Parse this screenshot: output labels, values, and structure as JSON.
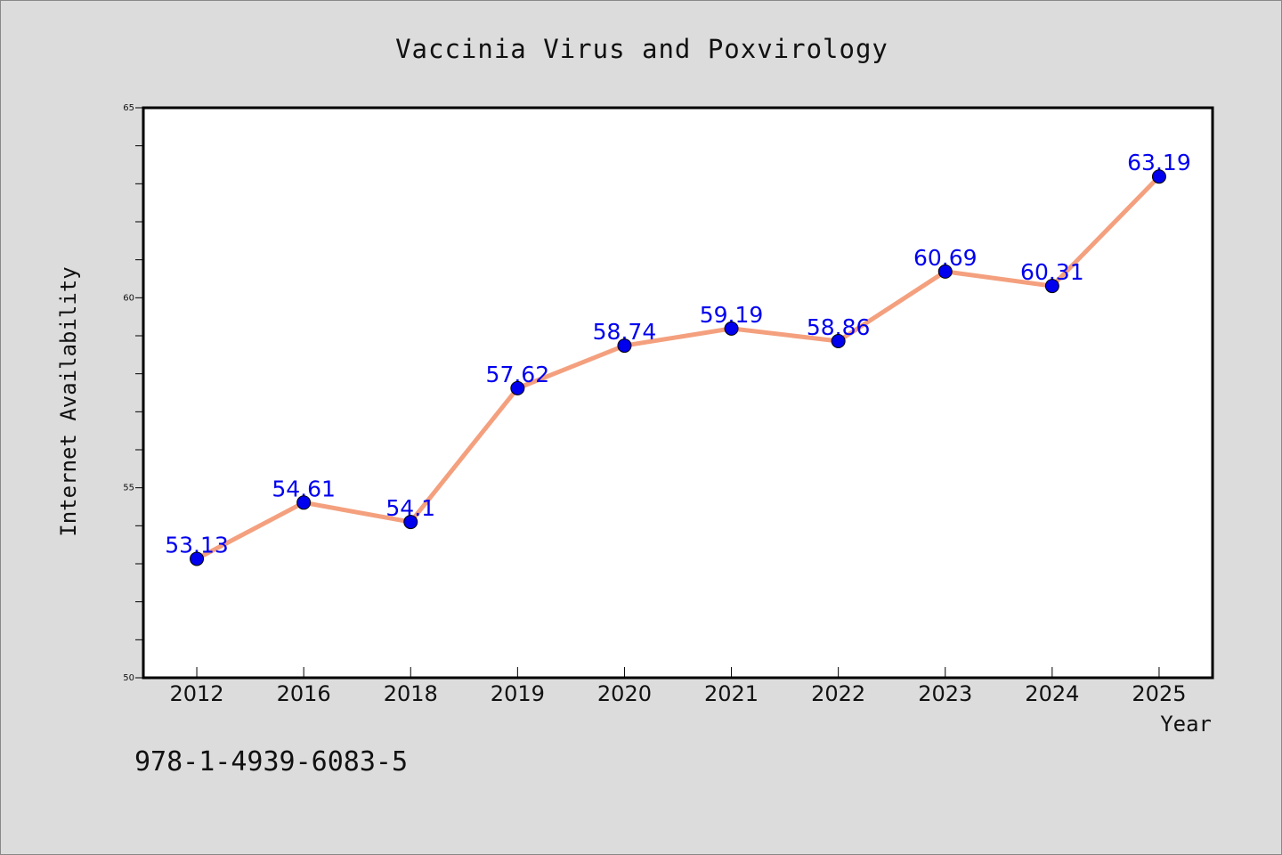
{
  "chart_data": {
    "type": "line",
    "title": "Vaccinia Virus and Poxvirology",
    "xlabel": "Year",
    "ylabel": "Internet Availability",
    "categories": [
      "2012",
      "2016",
      "2018",
      "2019",
      "2020",
      "2021",
      "2022",
      "2023",
      "2024",
      "2025"
    ],
    "values": [
      53.13,
      54.61,
      54.1,
      57.62,
      58.74,
      59.19,
      58.86,
      60.69,
      60.31,
      63.19
    ],
    "data_labels": [
      "53.13",
      "54.61",
      "54.1",
      "57.62",
      "58.74",
      "59.19",
      "58.86",
      "60.69",
      "60.31",
      "63.19"
    ],
    "ylim": [
      50,
      65
    ],
    "y_major_ticks": [
      50,
      55,
      60,
      65
    ],
    "y_minor_step": 1,
    "grid": false,
    "legend": "none",
    "line_color": "#f4a07e",
    "marker_color": "#0000ee",
    "label_color": "#0000ee",
    "background_color": "#dcdcdc",
    "plot_background": "#ffffff"
  },
  "footer": {
    "isbn": "978-1-4939-6083-5"
  }
}
